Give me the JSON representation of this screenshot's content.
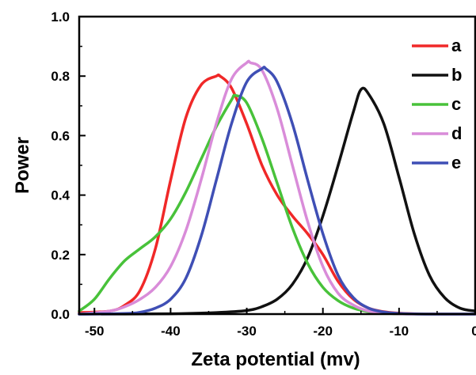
{
  "chart_data": {
    "type": "line",
    "xlabel": "Zeta potential (mv)",
    "ylabel": "Power",
    "xlim": [
      -52,
      0
    ],
    "ylim": [
      0,
      1.0
    ],
    "x_ticks": [
      "-50",
      "-40",
      "-30",
      "-20",
      "-10",
      "0"
    ],
    "x_tick_values": [
      -50,
      -40,
      -30,
      -20,
      -10,
      0
    ],
    "y_ticks": [
      "0.0",
      "0.2",
      "0.4",
      "0.6",
      "0.8",
      "1.0"
    ],
    "y_tick_values": [
      0.0,
      0.2,
      0.4,
      0.6,
      0.8,
      1.0
    ],
    "legend_position": "top-right",
    "grid": false,
    "series": [
      {
        "name": "a",
        "color": "#f02828",
        "x": [
          -52,
          -48,
          -46,
          -44,
          -42,
          -40,
          -38,
          -36,
          -34,
          -33.5,
          -32,
          -30,
          -28,
          -26,
          -24,
          -22,
          -20,
          -18,
          -16,
          -14,
          -12,
          -10,
          -8,
          -4,
          0
        ],
        "y": [
          0.005,
          0.01,
          0.03,
          0.08,
          0.22,
          0.45,
          0.66,
          0.77,
          0.8,
          0.8,
          0.76,
          0.64,
          0.5,
          0.4,
          0.33,
          0.27,
          0.2,
          0.11,
          0.05,
          0.02,
          0.008,
          0.003,
          0.001,
          0.0,
          0.0
        ]
      },
      {
        "name": "b",
        "color": "#111111",
        "x": [
          -52,
          -40,
          -34,
          -30,
          -28,
          -26,
          -24,
          -22,
          -20,
          -18,
          -16,
          -15,
          -14,
          -12,
          -10,
          -8,
          -6,
          -4,
          -2,
          0
        ],
        "y": [
          0.0,
          0.001,
          0.005,
          0.012,
          0.025,
          0.05,
          0.1,
          0.19,
          0.33,
          0.5,
          0.68,
          0.755,
          0.74,
          0.64,
          0.46,
          0.27,
          0.13,
          0.055,
          0.02,
          0.01
        ]
      },
      {
        "name": "c",
        "color": "#48c23a",
        "x": [
          -52,
          -50,
          -48,
          -46,
          -44,
          -42,
          -40,
          -38,
          -36,
          -34,
          -32,
          -31.5,
          -30,
          -28,
          -26,
          -24,
          -22,
          -20,
          -18,
          -16,
          -14,
          -12,
          -10,
          -6,
          0
        ],
        "y": [
          0.01,
          0.05,
          0.12,
          0.18,
          0.22,
          0.26,
          0.32,
          0.41,
          0.52,
          0.63,
          0.72,
          0.735,
          0.71,
          0.59,
          0.44,
          0.29,
          0.17,
          0.09,
          0.045,
          0.02,
          0.008,
          0.003,
          0.001,
          0.0,
          0.0
        ]
      },
      {
        "name": "d",
        "color": "#d98cd9",
        "x": [
          -52,
          -48,
          -46,
          -44,
          -42,
          -40,
          -38,
          -36,
          -34,
          -32,
          -30,
          -29.5,
          -28,
          -26,
          -24,
          -22,
          -20,
          -18,
          -16,
          -14,
          -12,
          -10,
          -6,
          0
        ],
        "y": [
          0.0,
          0.01,
          0.025,
          0.05,
          0.09,
          0.16,
          0.28,
          0.45,
          0.64,
          0.79,
          0.845,
          0.845,
          0.82,
          0.69,
          0.5,
          0.31,
          0.16,
          0.07,
          0.03,
          0.01,
          0.004,
          0.001,
          0.0,
          0.0
        ]
      },
      {
        "name": "e",
        "color": "#3f4fb5",
        "x": [
          -52,
          -46,
          -44,
          -42,
          -40,
          -38,
          -36,
          -34,
          -32,
          -30,
          -28,
          -27.5,
          -26,
          -24,
          -22,
          -20,
          -18,
          -16,
          -14,
          -12,
          -10,
          -6,
          0
        ],
        "y": [
          0.0,
          0.002,
          0.006,
          0.02,
          0.05,
          0.12,
          0.26,
          0.45,
          0.64,
          0.78,
          0.825,
          0.825,
          0.78,
          0.64,
          0.45,
          0.27,
          0.13,
          0.055,
          0.02,
          0.007,
          0.002,
          0.0,
          0.0
        ]
      }
    ]
  }
}
